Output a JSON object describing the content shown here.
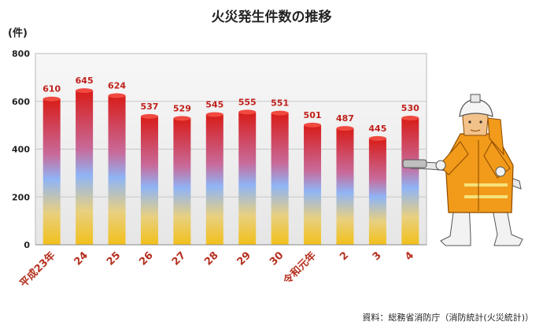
{
  "chart_data": {
    "type": "bar",
    "title": "火災発生件数の推移",
    "ylabel": "(件)",
    "ylim": [
      0,
      800
    ],
    "yticks": [
      0,
      200,
      400,
      600,
      800
    ],
    "grid": true,
    "categories": [
      "平成23年",
      "24",
      "25",
      "26",
      "27",
      "28",
      "29",
      "30",
      "令和元年",
      "2",
      "3",
      "4"
    ],
    "values": [
      610,
      645,
      624,
      537,
      529,
      545,
      555,
      551,
      501,
      487,
      445,
      530
    ],
    "colors": {
      "bar_top": "#d8201c",
      "bar_mid": "#8fb4f5",
      "bar_bottom": "#f0c020",
      "label": "#c0201a",
      "plot_background": "#f0f0f0"
    }
  },
  "source": "資料：総務省消防庁（消防統計(火災統計)）",
  "illustration": {
    "icon": "firefighter-with-hose-icon"
  }
}
